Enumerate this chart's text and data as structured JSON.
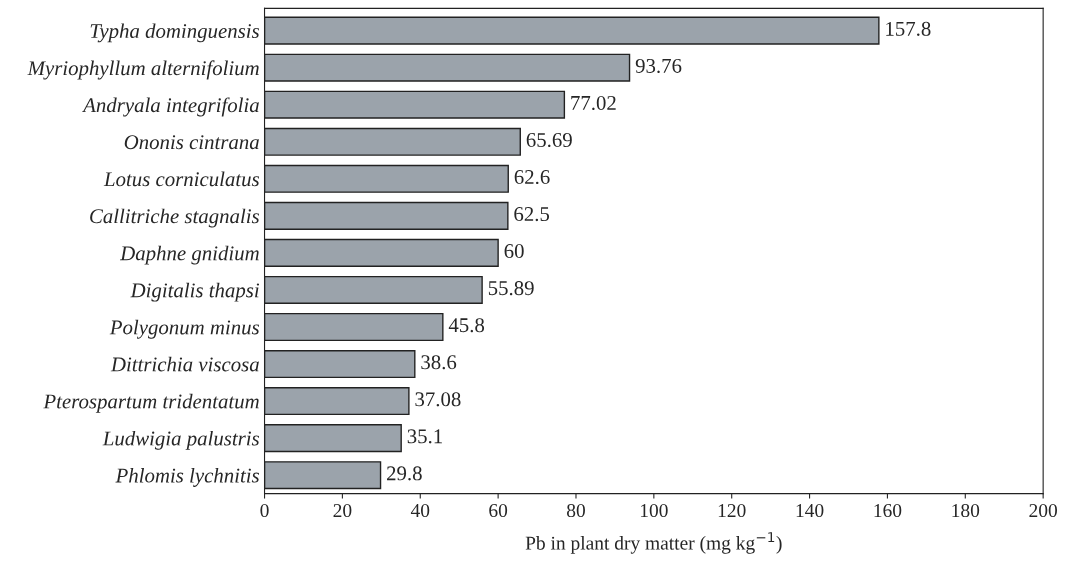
{
  "chart_data": {
    "type": "bar",
    "orientation": "horizontal",
    "xlabel": "Pb in plant dry matter (mg kg$^{−1}$)",
    "categories": [
      "Typha dominguensis",
      "Myriophyllum alternifolium",
      "Andryala integrifolia",
      "Ononis cintrana",
      "Lotus corniculatus",
      "Callitriche stagnalis",
      "Daphne gnidium",
      "Digitalis thapsi",
      "Polygonum minus",
      "Dittrichia viscosa",
      "Pterospartum tridentatum",
      "Ludwigia palustris",
      "Phlomis lychnitis"
    ],
    "values": [
      157.8,
      93.76,
      77.02,
      65.69,
      62.6,
      62.5,
      60,
      55.89,
      45.8,
      38.6,
      37.08,
      35.1,
      29.8
    ],
    "value_labels": [
      "157.8",
      "93.76",
      "77.02",
      "65.69",
      "62.6",
      "62.5",
      "60",
      "55.89",
      "45.8",
      "38.6",
      "37.08",
      "35.1",
      "29.8"
    ],
    "color": "#9ba3ab",
    "xlim": [
      0,
      200
    ],
    "xticks": [
      0,
      20,
      40,
      60,
      80,
      100,
      120,
      140,
      160,
      180,
      200
    ],
    "grid": false,
    "legend": false
  }
}
